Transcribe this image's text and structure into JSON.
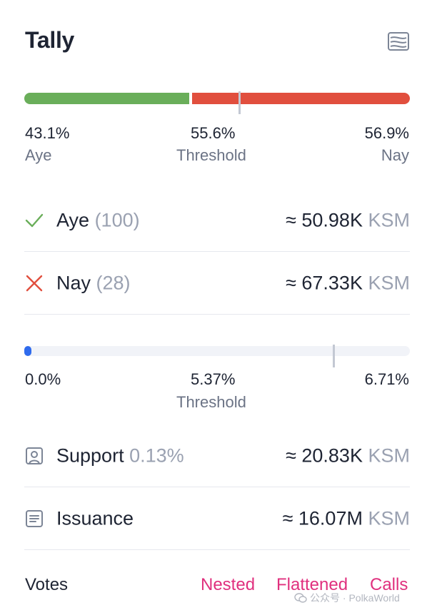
{
  "title": "Tally",
  "icons": {
    "tally_icon": "chart-lines-icon",
    "aye_icon": "check-icon",
    "nay_icon": "close-icon",
    "support_icon": "user-frame-icon",
    "issuance_icon": "document-icon"
  },
  "colors": {
    "aye": "#6aae5a",
    "nay": "#e14f3e",
    "support": "#2f6bed",
    "link": "#e0307e"
  },
  "approval": {
    "aye_percent": "43.1%",
    "aye_label": "Aye",
    "threshold_percent": "55.6%",
    "threshold_label": "Threshold",
    "nay_percent": "56.9%",
    "nay_label": "Nay",
    "aye_fraction": 0.431,
    "threshold_fraction": 0.556
  },
  "aye": {
    "label": "Aye",
    "count": "(100)",
    "value": "≈ 50.98K",
    "unit": "KSM"
  },
  "nay": {
    "label": "Nay",
    "count": "(28)",
    "value": "≈ 67.33K",
    "unit": "KSM"
  },
  "support_bar": {
    "current_percent": "0.0%",
    "threshold_percent": "5.37%",
    "threshold_label": "Threshold",
    "max_percent": "6.71%",
    "current_fraction": 0.0,
    "threshold_fraction": 0.8
  },
  "support": {
    "label": "Support",
    "percent": "0.13%",
    "value": "≈ 20.83K",
    "unit": "KSM"
  },
  "issuance": {
    "label": "Issuance",
    "value": "≈ 16.07M",
    "unit": "KSM"
  },
  "votes": {
    "label": "Votes",
    "tabs": [
      "Nested",
      "Flattened",
      "Calls"
    ]
  },
  "watermark": "公众号 · PolkaWorld"
}
